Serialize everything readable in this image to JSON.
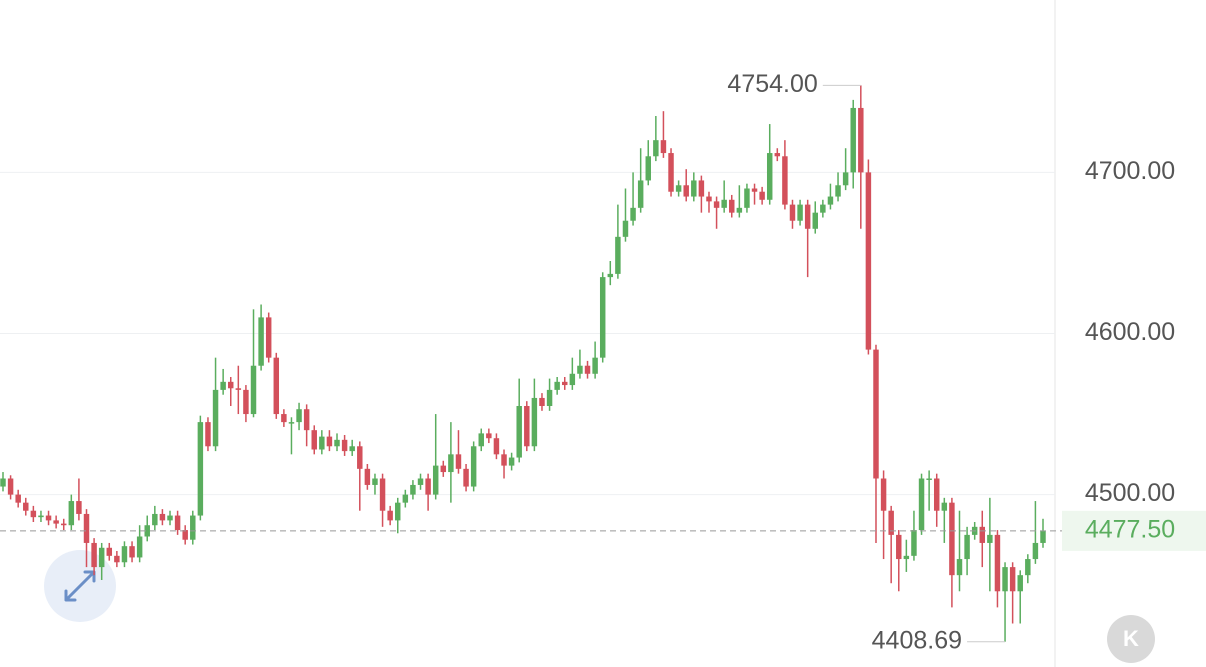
{
  "chart_data": {
    "type": "candlestick",
    "open": [
      4505,
      4510,
      4500,
      4495,
      4490,
      4486,
      4487,
      4484,
      4482,
      4481,
      4496,
      4488,
      4470,
      4455,
      4467,
      4462,
      4458,
      4468,
      4461,
      4474,
      4481,
      4488,
      4484,
      4487,
      4478,
      4472,
      4487,
      4545,
      4530,
      4565,
      4570,
      4566,
      4565,
      4550,
      4580,
      4610,
      4585,
      4550,
      4545,
      4545,
      4553,
      4540,
      4528,
      4536,
      4530,
      4534,
      4527,
      4530,
      4516,
      4506,
      4510,
      4490,
      4484,
      4495,
      4500,
      4506,
      4510,
      4500,
      4518,
      4514,
      4525,
      4516,
      4505,
      4530,
      4538,
      4535,
      4525,
      4518,
      4523,
      4555,
      4530,
      4560,
      4555,
      4565,
      4570,
      4568,
      4575,
      4580,
      4575,
      4585,
      4635,
      4637,
      4660,
      4670,
      4678,
      4695,
      4710,
      4720,
      4712,
      4688,
      4692,
      4685,
      4695,
      4685,
      4682,
      4678,
      4683,
      4675,
      4678,
      4690,
      4688,
      4683,
      4712,
      4710,
      4680,
      4670,
      4680,
      4665,
      4675,
      4680,
      4685,
      4692,
      4700,
      4740,
      4700,
      4590,
      4510,
      4490,
      4475,
      4460,
      4462,
      4478,
      4510,
      4510,
      4490,
      4495,
      4450,
      4460,
      4475,
      4480,
      4470,
      4475,
      4440,
      4455,
      4440,
      4450,
      4460,
      4470
    ],
    "high": [
      4514,
      4512,
      4503,
      4498,
      4493,
      4490,
      4490,
      4487,
      4485,
      4500,
      4510,
      4491,
      4473,
      4470,
      4470,
      4465,
      4471,
      4471,
      4481,
      4487,
      4493,
      4491,
      4490,
      4490,
      4481,
      4490,
      4549,
      4548,
      4585,
      4578,
      4573,
      4580,
      4568,
      4615,
      4618,
      4613,
      4588,
      4553,
      4548,
      4557,
      4556,
      4543,
      4540,
      4540,
      4538,
      4537,
      4534,
      4533,
      4519,
      4513,
      4513,
      4493,
      4498,
      4503,
      4509,
      4513,
      4513,
      4550,
      4521,
      4545,
      4540,
      4519,
      4533,
      4541,
      4541,
      4538,
      4528,
      4526,
      4572,
      4558,
      4572,
      4563,
      4572,
      4573,
      4573,
      4585,
      4590,
      4583,
      4595,
      4638,
      4645,
      4680,
      4690,
      4700,
      4715,
      4720,
      4735,
      4738,
      4715,
      4695,
      4702,
      4700,
      4698,
      4688,
      4685,
      4695,
      4686,
      4692,
      4693,
      4693,
      4691,
      4730,
      4715,
      4720,
      4683,
      4683,
      4683,
      4682,
      4683,
      4693,
      4700,
      4715,
      4745,
      4754,
      4708,
      4593,
      4515,
      4493,
      4478,
      4472,
      4490,
      4513,
      4515,
      4513,
      4498,
      4498,
      4490,
      4480,
      4483,
      4490,
      4498,
      4478,
      4458,
      4458,
      4453,
      4463,
      4496,
      4485
    ],
    "low": [
      4502,
      4497,
      4492,
      4487,
      4483,
      4483,
      4481,
      4479,
      4478,
      4478,
      4484,
      4455,
      4450,
      4447,
      4459,
      4455,
      4455,
      4458,
      4458,
      4471,
      4478,
      4481,
      4481,
      4475,
      4469,
      4469,
      4484,
      4527,
      4527,
      4562,
      4555,
      4550,
      4545,
      4548,
      4577,
      4582,
      4547,
      4542,
      4525,
      4540,
      4530,
      4525,
      4525,
      4527,
      4527,
      4524,
      4524,
      4490,
      4503,
      4500,
      4480,
      4481,
      4476,
      4492,
      4497,
      4503,
      4490,
      4497,
      4511,
      4495,
      4513,
      4502,
      4502,
      4527,
      4532,
      4522,
      4510,
      4515,
      4520,
      4527,
      4527,
      4552,
      4552,
      4562,
      4565,
      4565,
      4572,
      4572,
      4572,
      4582,
      4630,
      4634,
      4657,
      4667,
      4675,
      4692,
      4707,
      4709,
      4685,
      4685,
      4682,
      4682,
      4675,
      4675,
      4665,
      4675,
      4672,
      4672,
      4675,
      4680,
      4680,
      4680,
      4707,
      4677,
      4665,
      4667,
      4635,
      4662,
      4672,
      4677,
      4682,
      4689,
      4690,
      4665,
      4587,
      4470,
      4460,
      4445,
      4440,
      4452,
      4459,
      4475,
      4490,
      4480,
      4470,
      4430,
      4440,
      4450,
      4472,
      4455,
      4440,
      4430,
      4408.69,
      4420,
      4420,
      4445,
      4457,
      4467
    ],
    "close": [
      4510,
      4500,
      4495,
      4490,
      4486,
      4487,
      4484,
      4482,
      4481,
      4496,
      4488,
      4470,
      4455,
      4467,
      4462,
      4458,
      4468,
      4461,
      4474,
      4481,
      4488,
      4484,
      4487,
      4478,
      4472,
      4487,
      4545,
      4530,
      4565,
      4570,
      4566,
      4565,
      4550,
      4580,
      4610,
      4585,
      4550,
      4545,
      4545,
      4553,
      4540,
      4528,
      4536,
      4530,
      4534,
      4527,
      4530,
      4516,
      4506,
      4510,
      4490,
      4484,
      4495,
      4500,
      4506,
      4510,
      4500,
      4518,
      4514,
      4525,
      4516,
      4505,
      4530,
      4538,
      4535,
      4525,
      4518,
      4523,
      4555,
      4530,
      4560,
      4555,
      4565,
      4570,
      4568,
      4575,
      4580,
      4575,
      4585,
      4635,
      4637,
      4660,
      4670,
      4678,
      4695,
      4710,
      4720,
      4712,
      4688,
      4692,
      4685,
      4695,
      4685,
      4682,
      4678,
      4683,
      4675,
      4678,
      4690,
      4688,
      4683,
      4712,
      4710,
      4680,
      4670,
      4680,
      4665,
      4675,
      4680,
      4685,
      4692,
      4700,
      4740,
      4700,
      4590,
      4510,
      4490,
      4475,
      4460,
      4462,
      4478,
      4510,
      4510,
      4490,
      4495,
      4450,
      4460,
      4475,
      4480,
      4470,
      4475,
      4440,
      4455,
      4440,
      4450,
      4460,
      4470,
      4477.5
    ],
    "up_color": "#5aad5e",
    "down_color": "#d3505b",
    "ylim": [
      4393,
      4807
    ],
    "yticks": [
      {
        "value": 4500,
        "label": "4500.00"
      },
      {
        "value": 4600,
        "label": "4600.00"
      },
      {
        "value": 4700,
        "label": "4700.00"
      }
    ],
    "grid": true,
    "high_annotation": {
      "value": 4754,
      "label": "4754.00"
    },
    "low_annotation": {
      "value": 4408.69,
      "label": "4408.69"
    },
    "last_price": {
      "value": 4477.5,
      "label": "4477.50"
    },
    "button_label": "K"
  }
}
